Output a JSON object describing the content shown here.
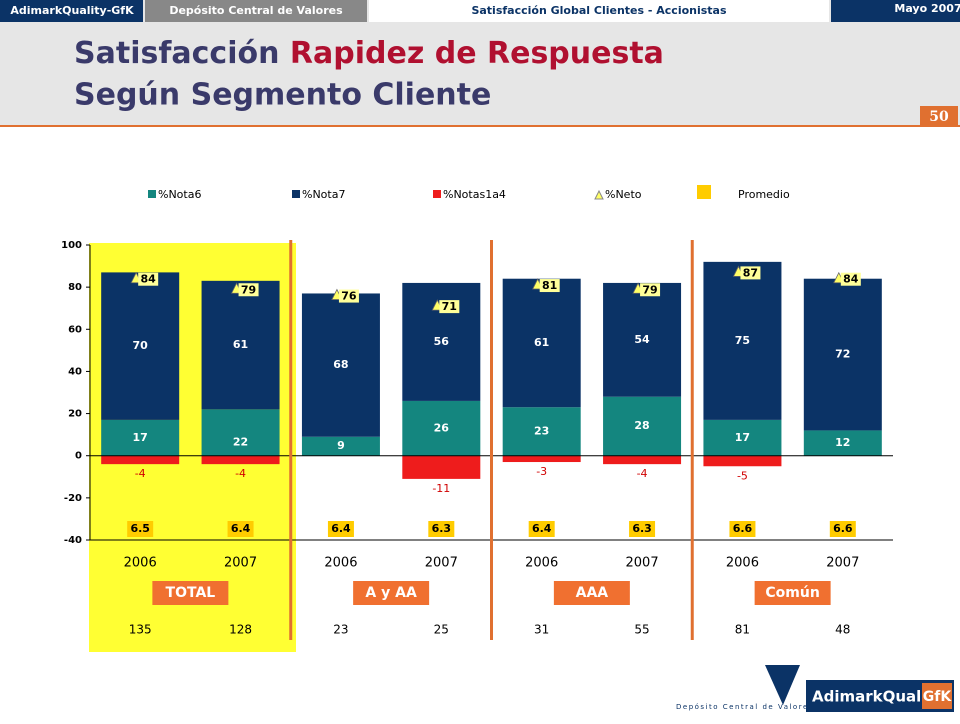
{
  "header": {
    "tabs": [
      "AdimarkQuality-GfK",
      "Depósito Central de Valores",
      "Satisfacción Global Clientes - Accionistas",
      "Mayo 2007"
    ],
    "title_part1": "Satisfacción",
    "title_part2": "Rapidez de Respuesta",
    "title_line2": "Según Segmento Cliente",
    "page_number": "50"
  },
  "chart_data": {
    "type": "bar",
    "categories": [
      "2006",
      "2007",
      "2006",
      "2007",
      "2006",
      "2007",
      "2006",
      "2007"
    ],
    "groups": [
      "TOTAL",
      "A y AA",
      "AAA",
      "Común"
    ],
    "series": [
      {
        "name": "%Nota6",
        "color": "#14867f",
        "values": [
          17,
          22,
          9,
          26,
          23,
          28,
          17,
          12
        ]
      },
      {
        "name": "%Nota7",
        "color": "#0b3366",
        "values": [
          70,
          61,
          68,
          56,
          61,
          54,
          75,
          72
        ]
      },
      {
        "name": "%Notas1a4",
        "color": "#ee1c1c",
        "values": [
          -4,
          -4,
          null,
          -11,
          -3,
          -4,
          -5,
          null
        ]
      },
      {
        "name": "%Neto",
        "color": "#ffff66",
        "values": [
          84,
          79,
          76,
          71,
          81,
          79,
          87,
          84
        ]
      }
    ],
    "average": {
      "name": "Promedio",
      "color": "#ffcc00",
      "values": [
        6.5,
        6.4,
        6.4,
        6.3,
        6.4,
        6.3,
        6.6,
        6.6
      ]
    },
    "base": [
      135,
      128,
      23,
      25,
      31,
      55,
      81,
      48
    ],
    "ylim": [
      -40,
      100
    ],
    "yticks": [
      -40,
      -20,
      0,
      20,
      40,
      60,
      80,
      100
    ]
  },
  "footer": {
    "logo1": "Depósito Central de Valores",
    "logo2a": "AdimarkQuality",
    "logo2b": "GfK"
  }
}
